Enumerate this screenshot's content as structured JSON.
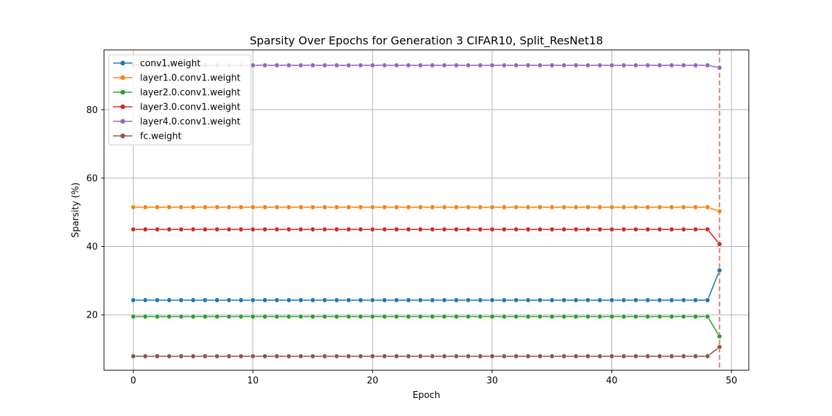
{
  "chart_data": {
    "type": "line",
    "title": "Sparsity Over Epochs for Generation 3 CIFAR10, Split_ResNet18",
    "xlabel": "Epoch",
    "ylabel": "Sparsity (%)",
    "xlim": [
      -2.45,
      51.45
    ],
    "ylim": [
      3.8,
      97.5
    ],
    "xticks": [
      0,
      10,
      20,
      30,
      40,
      50
    ],
    "yticks": [
      20,
      40,
      60,
      80
    ],
    "grid": true,
    "legend_position": "top-left",
    "vline": {
      "x": 49,
      "color": "#ee7777",
      "style": "dashed"
    },
    "series": [
      {
        "name": "conv1.weight",
        "color": "#1f77b4",
        "base": 24.3,
        "final": 33.0
      },
      {
        "name": "layer1.0.conv1.weight",
        "color": "#ff7f0e",
        "base": 51.5,
        "final": 50.3
      },
      {
        "name": "layer2.0.conv1.weight",
        "color": "#2ca02c",
        "base": 19.5,
        "final": 13.7
      },
      {
        "name": "layer3.0.conv1.weight",
        "color": "#d62728",
        "base": 45.0,
        "final": 40.7
      },
      {
        "name": "layer4.0.conv1.weight",
        "color": "#9467bd",
        "base": 93.0,
        "final": 92.3
      },
      {
        "name": "fc.weight",
        "color": "#8c564b",
        "base": 7.9,
        "final": 10.6
      }
    ],
    "epochs_note": "epochs 0-48 hold base value; epoch 49 holds final value"
  }
}
